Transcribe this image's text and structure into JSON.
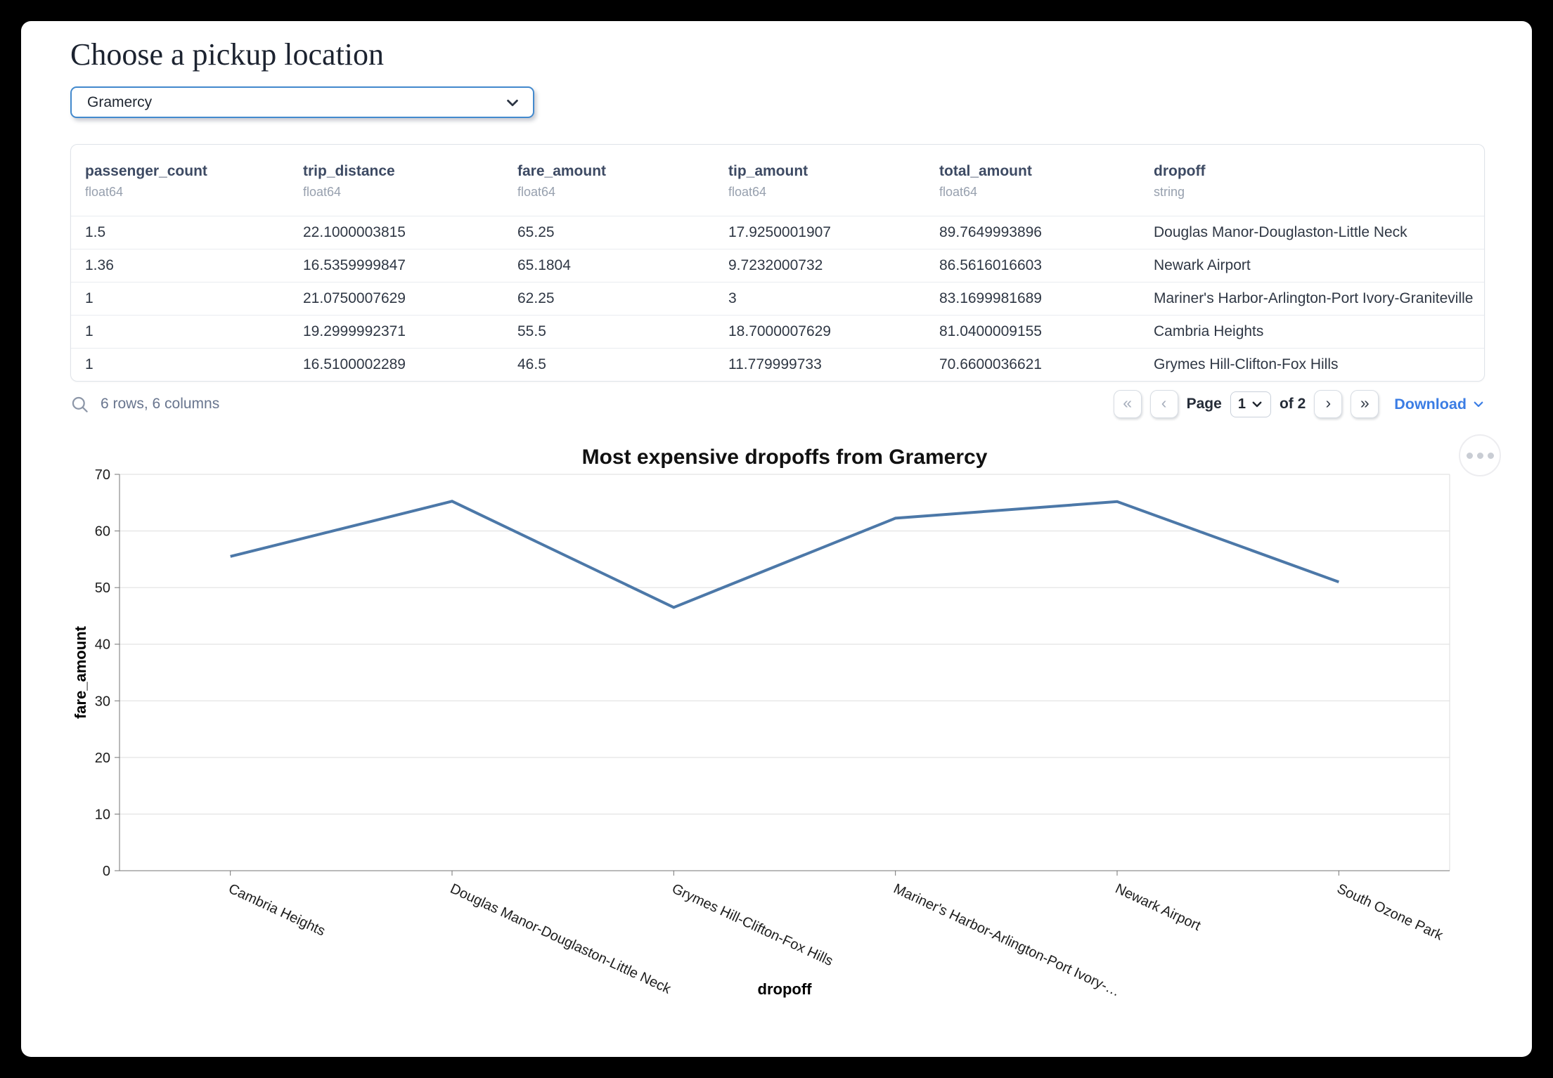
{
  "header": {
    "title": "Choose a pickup location"
  },
  "pickup_select": {
    "value": "Gramercy"
  },
  "table": {
    "columns": [
      {
        "name": "passenger_count",
        "type": "float64"
      },
      {
        "name": "trip_distance",
        "type": "float64"
      },
      {
        "name": "fare_amount",
        "type": "float64"
      },
      {
        "name": "tip_amount",
        "type": "float64"
      },
      {
        "name": "total_amount",
        "type": "float64"
      },
      {
        "name": "dropoff",
        "type": "string"
      }
    ],
    "rows": [
      [
        "1.5",
        "22.1000003815",
        "65.25",
        "17.9250001907",
        "89.7649993896",
        "Douglas Manor-Douglaston-Little Neck"
      ],
      [
        "1.36",
        "16.5359999847",
        "65.1804",
        "9.7232000732",
        "86.5616016603",
        "Newark Airport"
      ],
      [
        "1",
        "21.0750007629",
        "62.25",
        "3",
        "83.1699981689",
        "Mariner's Harbor-Arlington-Port Ivory-Graniteville"
      ],
      [
        "1",
        "19.2999992371",
        "55.5",
        "18.7000007629",
        "81.0400009155",
        "Cambria Heights"
      ],
      [
        "1",
        "16.5100002289",
        "46.5",
        "11.779999733",
        "70.6600036621",
        "Grymes Hill-Clifton-Fox Hills"
      ]
    ],
    "footer": {
      "summary": "6 rows, 6 columns",
      "page_label": "Page",
      "page_value": "1",
      "of_label": "of 2",
      "download_label": "Download"
    }
  },
  "pagination": {
    "first_icon": "«",
    "prev_icon": "‹",
    "next_icon": "›",
    "last_icon": "»"
  },
  "chart_data": {
    "type": "line",
    "title": "Most expensive dropoffs from Gramercy",
    "xlabel": "dropoff",
    "ylabel": "fare_amount",
    "categories": [
      "Cambria Heights",
      "Douglas Manor-Douglaston-Little Neck",
      "Grymes Hill-Clifton-Fox Hills",
      "Mariner's Harbor-Arlington-Port Ivory-…",
      "Newark Airport",
      "South Ozone Park"
    ],
    "values": [
      55.5,
      65.25,
      46.5,
      62.25,
      65.1804,
      51
    ],
    "ylim": [
      0,
      70
    ],
    "yticks": [
      0,
      10,
      20,
      30,
      40,
      50,
      60,
      70
    ],
    "line_color": "#4c78a8",
    "grid": true,
    "legend": "none",
    "x_label_angle_deg": 25
  },
  "colors": {
    "accent_blue": "#3b7de4",
    "select_border": "#4289cd",
    "chart_line": "#4c78a8"
  }
}
